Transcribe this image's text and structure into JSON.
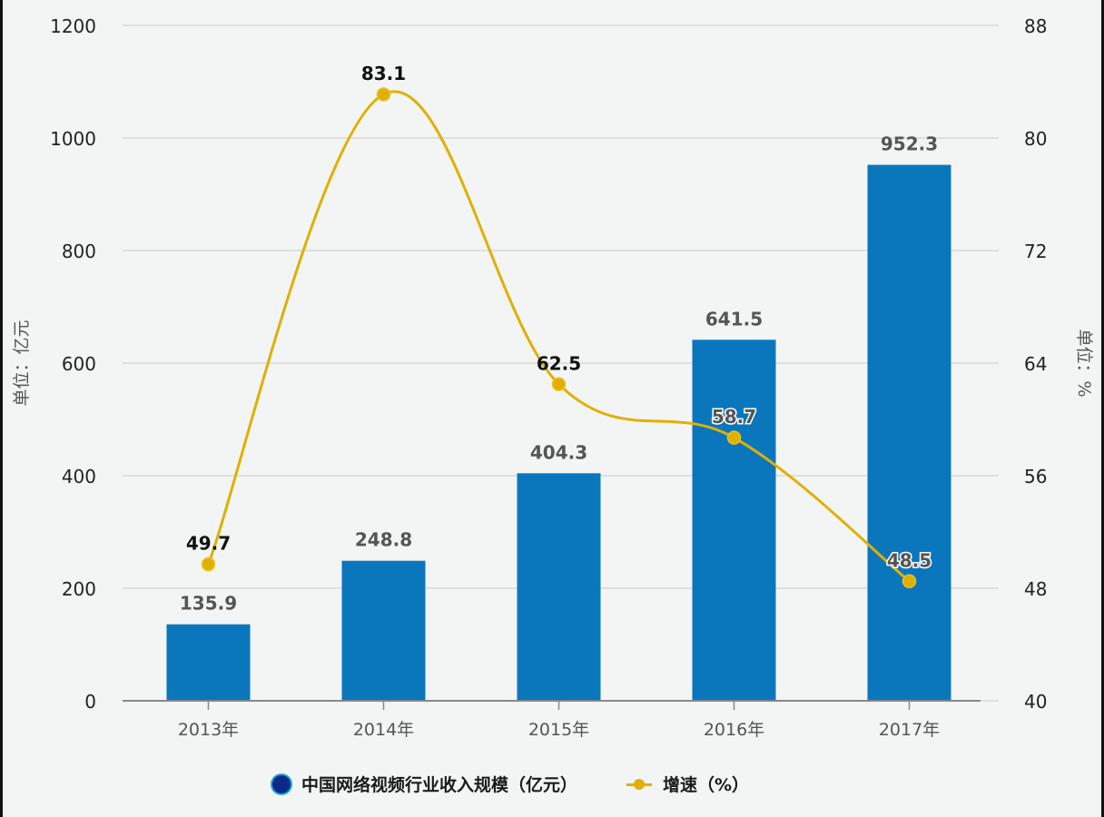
{
  "chart_data": {
    "type": "bar+line",
    "title": "",
    "categories": [
      "2013年",
      "2014年",
      "2015年",
      "2016年",
      "2017年"
    ],
    "series": [
      {
        "name": "中国网络视频行业收入规模（亿元）",
        "type": "bar",
        "axis": "left",
        "color": "#0a77bd",
        "values": [
          135.9,
          248.8,
          404.3,
          641.5,
          952.3
        ]
      },
      {
        "name": "增速（%）",
        "type": "line",
        "axis": "right",
        "color": "#e0b000",
        "values": [
          49.7,
          83.1,
          62.5,
          58.7,
          48.5
        ]
      }
    ],
    "ylabel": "单位：亿元",
    "ylabel_right": "单位：%",
    "ylim": [
      0,
      1200
    ],
    "ylim_right": [
      40,
      88
    ],
    "yticks": [
      "0",
      "200",
      "400",
      "600",
      "800",
      "1000",
      "1200"
    ],
    "yticks_right": [
      "40",
      "48",
      "56",
      "64",
      "72",
      "80",
      "88"
    ],
    "grid": true,
    "legend_position": "bottom"
  },
  "legend": {
    "bar_label": "中国网络视频行业收入规模（亿元）",
    "line_label": "增速（%）"
  }
}
